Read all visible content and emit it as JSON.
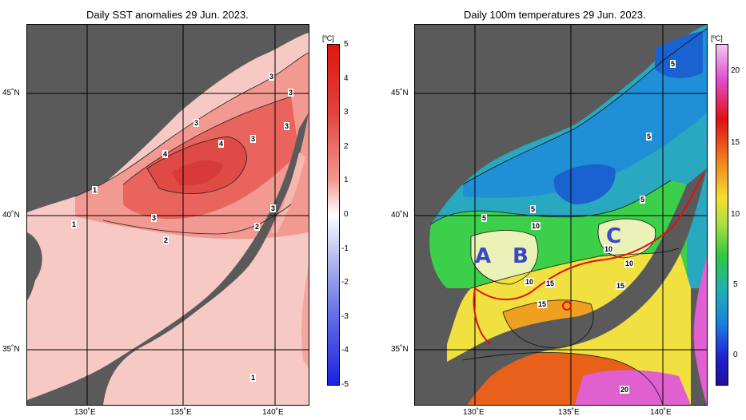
{
  "left_map": {
    "title": "Daily SST anomalies 29 Jun. 2023.",
    "unit": "[ºC]",
    "colorbar_ticks": [
      "5",
      "4",
      "3",
      "2",
      "1",
      "0",
      "-1",
      "-2",
      "-3",
      "-4",
      "-5"
    ],
    "contour_labels": [
      "3",
      "3",
      "3",
      "3",
      "3",
      "4",
      "4",
      "3",
      "1",
      "1",
      "3",
      "2",
      "2",
      "2",
      "1"
    ],
    "colors": {
      "land": "#5a5a5a",
      "positive": "#e0443f",
      "negative": "#2028e0"
    }
  },
  "right_map": {
    "title": "Daily 100m temperatures 29 Jun. 2023.",
    "unit": "[ºC]",
    "colorbar_ticks": [
      "20",
      "15",
      "10",
      "5",
      "0"
    ],
    "contour_labels": [
      "5",
      "5",
      "5",
      "5",
      "5",
      "5",
      "10",
      "10",
      "10",
      "10",
      "10",
      "15",
      "15",
      "15",
      "20"
    ],
    "zones": [
      "A",
      "B",
      "C"
    ],
    "colors": {
      "land": "#5a5a5a",
      "front_line": "#e01010",
      "zone_text": "#3b49c8"
    }
  },
  "axes": {
    "lat_labels": [
      "45˚N",
      "40˚N",
      "35˚N"
    ],
    "lon_labels": [
      "130˚E",
      "135˚E",
      "140˚E"
    ]
  }
}
